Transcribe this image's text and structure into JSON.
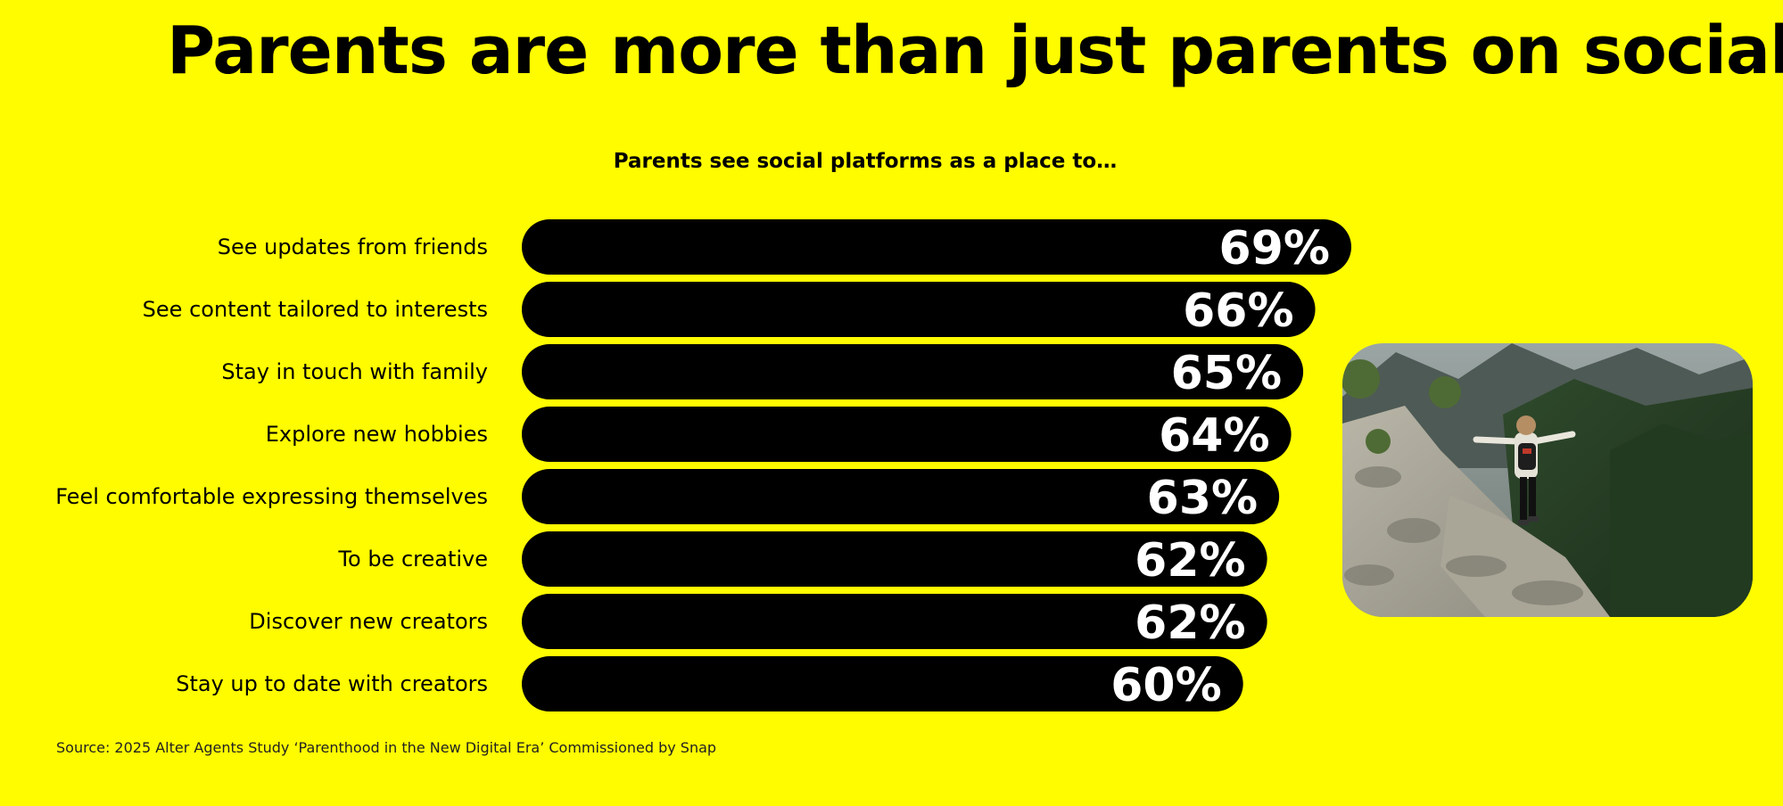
{
  "title": "Parents are more than just parents on social",
  "source": "Source: 2025 Alter Agents Study ‘Parenthood in the New Digital Era’ Commissioned by Snap",
  "colors": {
    "background": "#FFFC00",
    "bar": "#000000",
    "value_text": "#FFFFFF"
  },
  "photo": {
    "icon": "hiker-on-mountain-trail-photo"
  },
  "chart_data": {
    "type": "bar",
    "orientation": "horizontal",
    "title": "Parents see social platforms as a place to…",
    "categories": [
      "See updates from friends",
      "See content tailored to interests",
      "Stay in touch with family",
      "Explore new hobbies",
      "Feel comfortable expressing themselves",
      "To be creative",
      "Discover new creators",
      "Stay up to date with creators"
    ],
    "values": [
      69,
      66,
      65,
      64,
      63,
      62,
      62,
      60
    ],
    "value_labels": [
      "69%",
      "66%",
      "65%",
      "64%",
      "63%",
      "62%",
      "62%",
      "60%"
    ],
    "unit": "%",
    "grid": false,
    "legend": "none"
  }
}
